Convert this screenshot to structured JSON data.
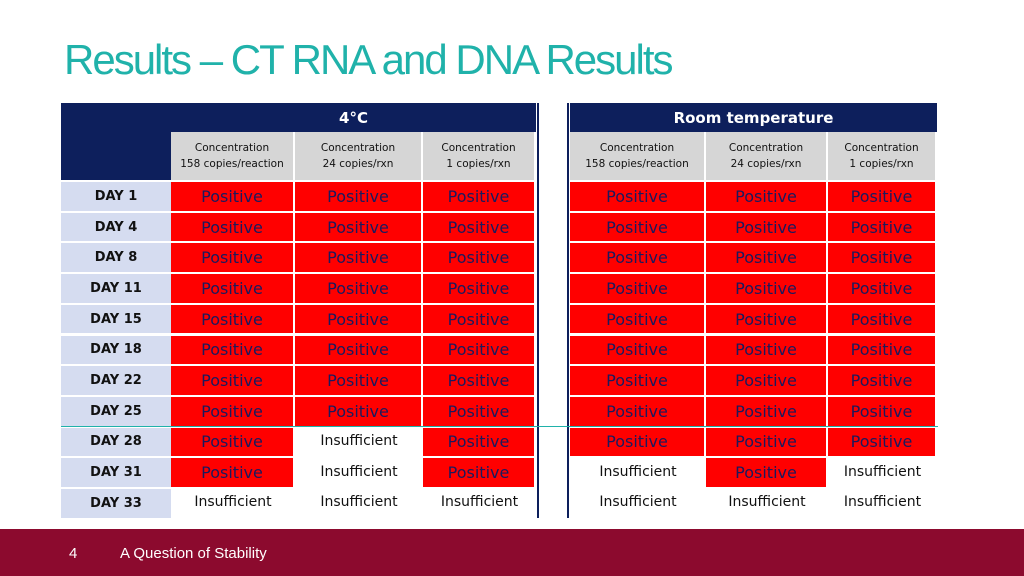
{
  "title": "Results – CT RNA and DNA Results",
  "groups": [
    "4°C",
    "Room temperature"
  ],
  "subheaders": [
    [
      "Concentration",
      "158 copies/reaction"
    ],
    [
      "Concentration",
      "24 copies/rxn"
    ],
    [
      "Concentration",
      "1 copies/rxn"
    ],
    [
      "Concentration",
      "158 copies/reaction"
    ],
    [
      "Concentration",
      "24 copies/rxn"
    ],
    [
      "Concentration",
      "1 copies/rxn"
    ]
  ],
  "rows": [
    {
      "day": "DAY 1",
      "cells": [
        "Positive",
        "Positive",
        "Positive",
        "Positive",
        "Positive",
        "Positive"
      ]
    },
    {
      "day": "DAY 4",
      "cells": [
        "Positive",
        "Positive",
        "Positive",
        "Positive",
        "Positive",
        "Positive"
      ]
    },
    {
      "day": "DAY 8",
      "cells": [
        "Positive",
        "Positive",
        "Positive",
        "Positive",
        "Positive",
        "Positive"
      ]
    },
    {
      "day": "DAY 11",
      "cells": [
        "Positive",
        "Positive",
        "Positive",
        "Positive",
        "Positive",
        "Positive"
      ]
    },
    {
      "day": "DAY 15",
      "cells": [
        "Positive",
        "Positive",
        "Positive",
        "Positive",
        "Positive",
        "Positive"
      ]
    },
    {
      "day": "DAY 18",
      "cells": [
        "Positive",
        "Positive",
        "Positive",
        "Positive",
        "Positive",
        "Positive"
      ]
    },
    {
      "day": "DAY 22",
      "cells": [
        "Positive",
        "Positive",
        "Positive",
        "Positive",
        "Positive",
        "Positive"
      ]
    },
    {
      "day": "DAY 25",
      "cells": [
        "Positive",
        "Positive",
        "Positive",
        "Positive",
        "Positive",
        "Positive"
      ]
    },
    {
      "day": "DAY 28",
      "cells": [
        "Positive",
        "Insufficient",
        "Positive",
        "Positive",
        "Positive",
        "Positive"
      ]
    },
    {
      "day": "DAY 31",
      "cells": [
        "Positive",
        "Insufficient",
        "Positive",
        "Insufficient",
        "Positive",
        "Insufficient"
      ]
    },
    {
      "day": "DAY 33",
      "cells": [
        "Insufficient",
        "Insufficient",
        "Insufficient",
        "Insufficient",
        "Insufficient",
        "Insufficient"
      ]
    }
  ],
  "colors": {
    "positive": "#ff0000",
    "header": "#0d1f5c",
    "title": "#20b2aa",
    "footer": "#8c0a2e"
  },
  "footer": {
    "page": "4",
    "text": "A Question of Stability"
  }
}
